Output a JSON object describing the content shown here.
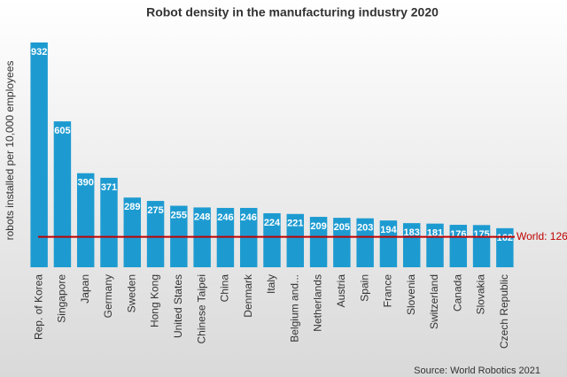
{
  "chart_data": {
    "type": "bar",
    "title": "Robot density in the manufacturing industry 2020",
    "y_label": "robots installed per 10,000 employees",
    "source": "Source: World Robotics 2021",
    "categories": [
      "Rep. of Korea",
      "Singapore",
      "Japan",
      "Germany",
      "Sweden",
      "Hong Kong",
      "United States",
      "Chinese Taipei",
      "China",
      "Denmark",
      "Italy",
      "Belgium and...",
      "Netherlands",
      "Austria",
      "Spain",
      "France",
      "Slovenia",
      "Switzerland",
      "Canada",
      "Slovakia",
      "Czech Republic"
    ],
    "values": [
      932,
      605,
      390,
      371,
      289,
      275,
      255,
      248,
      246,
      246,
      224,
      221,
      209,
      205,
      203,
      194,
      183,
      181,
      176,
      175,
      162
    ],
    "color": "#1d9bd1",
    "reference": {
      "label": "World: 126",
      "value": 126,
      "color": "#c00000"
    }
  }
}
